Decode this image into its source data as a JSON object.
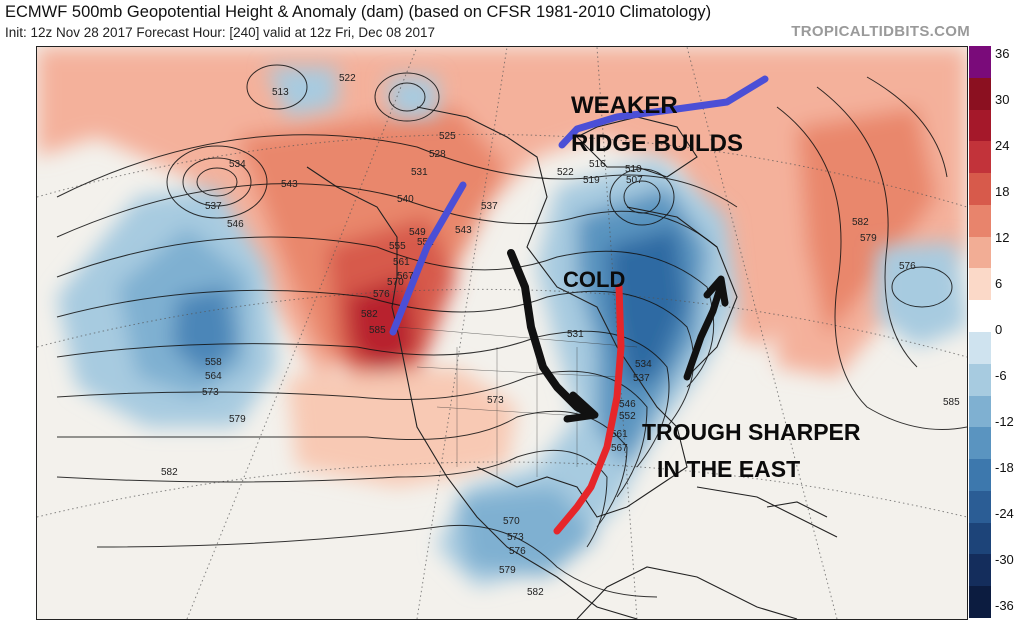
{
  "title": "ECMWF 500mb Geopotential Height & Anomaly (dam) (based on CFSR 1981-2010 Climatology)",
  "subtitle": "Init: 12z Nov 28 2017   Forecast Hour: [240]   valid at 12z Fri, Dec 08 2017",
  "credit": "TROPICALTIDBITS.COM",
  "annotations": {
    "weaker_ridge": [
      "WEAKER",
      "RIDGE BUILDS"
    ],
    "cold": "COLD",
    "trough": [
      "TROUGH SHARPER",
      "IN THE EAST"
    ]
  },
  "contour_labels": [
    "513",
    "522",
    "534",
    "537",
    "546",
    "543",
    "540",
    "549",
    "552",
    "555",
    "561",
    "567",
    "570",
    "576",
    "582",
    "585",
    "558",
    "564",
    "573",
    "579",
    "525",
    "528",
    "531",
    "510",
    "516",
    "519",
    "522",
    "537",
    "543",
    "573",
    "582",
    "582",
    "579",
    "576",
    "585",
    "570",
    "573",
    "576",
    "579",
    "582",
    "531",
    "534",
    "537",
    "546",
    "552",
    "561",
    "567",
    "507",
    "513"
  ],
  "colorbar": {
    "ticks": [
      "36",
      "30",
      "24",
      "18",
      "12",
      "6",
      "0",
      "-6",
      "-12",
      "-18",
      "-24",
      "-30",
      "-36"
    ],
    "colors": [
      "#7a0b7a",
      "#8b1020",
      "#a5182a",
      "#c2333a",
      "#d75a4b",
      "#e8846c",
      "#f2ad95",
      "#fbd9c8",
      "#ffffff",
      "#cfe3ef",
      "#a7cbe0",
      "#7fb0d1",
      "#5a94c0",
      "#3d78ad",
      "#2b5d95",
      "#1d4479",
      "#142d5c",
      "#0c1c40"
    ]
  }
}
